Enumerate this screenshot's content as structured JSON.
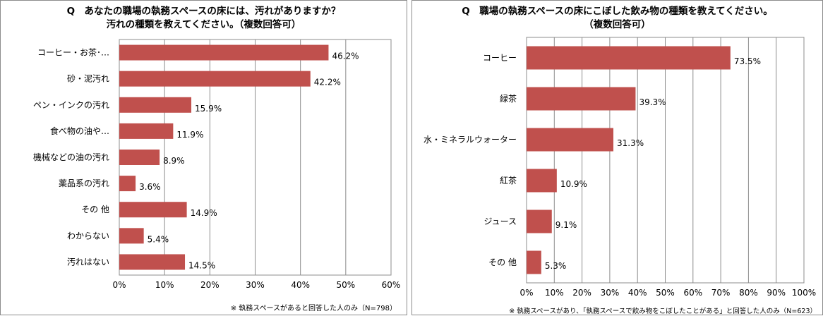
{
  "chart_data": [
    {
      "type": "bar",
      "orientation": "horizontal",
      "title": "Q　あなたの職場の執務スペースの床には、汚れがありますか？\n汚れの種類を教えてください。（複数回答可）",
      "categories": [
        "コーヒー・お茶･…",
        "砂・泥汚れ",
        "ペン・インクの汚れ",
        "食べ物の油や…",
        "機械などの油の汚れ",
        "薬品系の汚れ",
        "その 他",
        "わからない",
        "汚れはない"
      ],
      "values": [
        46.2,
        42.2,
        15.9,
        11.9,
        8.9,
        3.6,
        14.9,
        5.4,
        14.5
      ],
      "value_labels": [
        "46.2%",
        "42.2%",
        "15.9%",
        "11.9%",
        "8.9%",
        "3.6%",
        "14.9%",
        "5.4%",
        "14.5%"
      ],
      "x_ticks": [
        "0%",
        "10%",
        "20%",
        "30%",
        "40%",
        "50%",
        "60%"
      ],
      "xlim": [
        0,
        60
      ],
      "grid": true,
      "bar_color": "#c0504d",
      "note": "※ 執務スペースがあると回答した人のみ（N=798）"
    },
    {
      "type": "bar",
      "orientation": "horizontal",
      "title": "Q　職場の執務スペースの床にこぼした飲み物の種類を教えてください。\n（複数回答可）",
      "categories": [
        "コーヒー",
        "緑茶",
        "水・ミネラルウォーター",
        "紅茶",
        "ジュース",
        "その 他"
      ],
      "values": [
        73.5,
        39.3,
        31.3,
        10.9,
        9.1,
        5.3
      ],
      "value_labels": [
        "73.5%",
        "39.3%",
        "31.3%",
        "10.9%",
        "9.1%",
        "5.3%"
      ],
      "x_ticks": [
        "0%",
        "10%",
        "20%",
        "30%",
        "40%",
        "50%",
        "60%",
        "70%",
        "80%",
        "90%",
        "100%"
      ],
      "xlim": [
        0,
        100
      ],
      "grid": true,
      "bar_color": "#c0504d",
      "note": "※ 執務スペースがあり、「執務スペースで飲み物をこぼしたことがある」と回答した人のみ（N=623）"
    }
  ]
}
